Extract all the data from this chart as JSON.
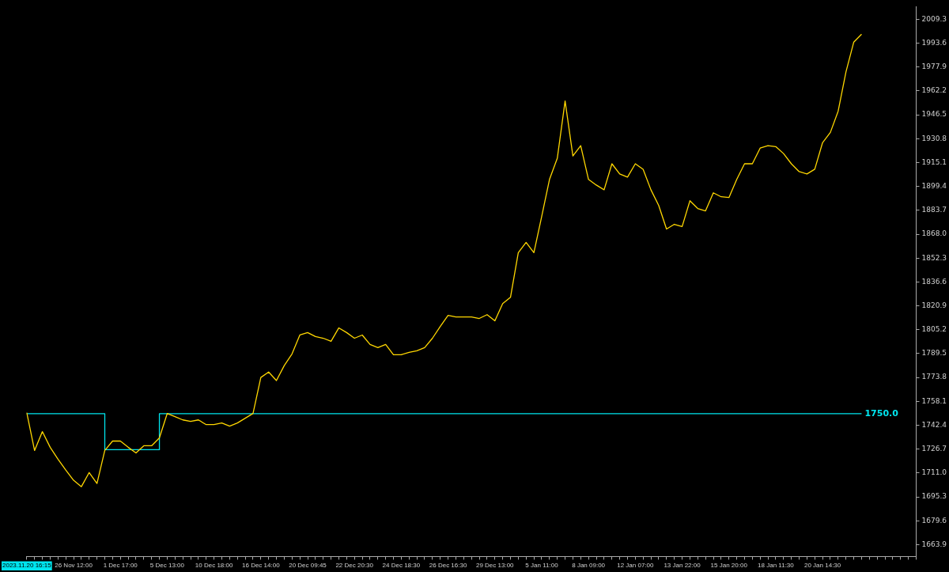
{
  "chart_data": {
    "type": "line",
    "categories": [
      "2023.11.20 16:15",
      null,
      null,
      null,
      null,
      null,
      "26 Nov 12:00",
      null,
      null,
      null,
      null,
      null,
      "1 Dec 17:00",
      null,
      null,
      null,
      null,
      null,
      "5 Dec 13:00",
      null,
      null,
      null,
      null,
      null,
      "10 Dec 18:00",
      null,
      null,
      null,
      null,
      null,
      "16 Dec 14:00",
      null,
      null,
      null,
      null,
      null,
      "20 Dec 09:45",
      null,
      null,
      null,
      null,
      null,
      "22 Dec 20:30",
      null,
      null,
      null,
      null,
      null,
      "24 Dec 18:30",
      null,
      null,
      null,
      null,
      null,
      "26 Dec 16:30",
      null,
      null,
      null,
      null,
      null,
      "29 Dec 13:00",
      null,
      null,
      null,
      null,
      null,
      "5 Jan 11:00",
      null,
      null,
      null,
      null,
      null,
      "8 Jan 09:00",
      null,
      null,
      null,
      null,
      null,
      "12 Jan 07:00",
      null,
      null,
      null,
      null,
      null,
      "13 Jan 22:00",
      null,
      null,
      null,
      null,
      null,
      "15 Jan 20:00",
      null,
      null,
      null,
      null,
      null,
      "18 Jan 11:30",
      null,
      null,
      null,
      null,
      null,
      "20 Jan 14:30",
      null,
      null,
      null,
      null,
      null,
      null,
      null,
      null,
      null,
      null,
      null,
      null
    ],
    "series": [
      {
        "color": "#ffd700",
        "values": [
          1750.6,
          1725.8,
          1738.2,
          1727.9,
          1720.1,
          1712.9,
          1706.2,
          1702.0,
          1711.3,
          1704.1,
          1725.8,
          1732.0,
          1732.0,
          1727.9,
          1724.2,
          1728.9,
          1728.9,
          1734.1,
          1750.1,
          1748.0,
          1745.9,
          1744.9,
          1745.9,
          1742.8,
          1742.8,
          1743.9,
          1741.8,
          1743.9,
          1747.0,
          1750.1,
          1773.8,
          1777.4,
          1771.8,
          1781.6,
          1789.3,
          1801.7,
          1803.3,
          1800.7,
          1799.6,
          1797.6,
          1806.4,
          1803.3,
          1799.6,
          1801.7,
          1795.5,
          1793.4,
          1795.5,
          1788.8,
          1788.8,
          1790.3,
          1791.4,
          1793.4,
          1799.6,
          1807.4,
          1814.6,
          1813.6,
          1813.6,
          1813.6,
          1812.6,
          1815.1,
          1811.0,
          1822.4,
          1826.5,
          1855.9,
          1862.6,
          1855.9,
          1879.7,
          1904.0,
          1917.9,
          1955.6,
          1919.4,
          1926.2,
          1904.0,
          1900.3,
          1897.2,
          1914.3,
          1907.6,
          1905.5,
          1914.3,
          1910.7,
          1897.2,
          1886.9,
          1871.4,
          1874.5,
          1873.0,
          1890.0,
          1884.9,
          1883.3,
          1895.2,
          1892.6,
          1892.1,
          1904.0,
          1914.3,
          1914.3,
          1924.6,
          1926.2,
          1925.6,
          1921.0,
          1914.3,
          1909.1,
          1907.6,
          1910.7,
          1928.2,
          1934.9,
          1948.9,
          1974.7,
          1994.3,
          1999.5,
          null,
          null,
          null,
          null,
          null,
          null,
          null
        ]
      },
      {
        "type": "step",
        "color": "#00e5ee",
        "values": [
          1750,
          1750,
          1750,
          1750,
          1750,
          1750,
          1750,
          1750,
          1750,
          1750,
          1750,
          1726.3,
          1726.3,
          1726.3,
          1726.3,
          1726.3,
          1726.3,
          1726.3,
          1750,
          1750,
          1750,
          1750,
          1750,
          1750,
          1750,
          1750,
          1750,
          1750,
          1750,
          1750,
          1750,
          1750,
          1750,
          1750,
          1750,
          1750,
          1750,
          1750,
          1750,
          1750,
          1750,
          1750,
          1750,
          1750,
          1750,
          1750,
          1750,
          1750,
          1750,
          1750,
          1750,
          1750,
          1750,
          1750,
          1750,
          1750,
          1750,
          1750,
          1750,
          1750,
          1750,
          1750,
          1750,
          1750,
          1750,
          1750,
          1750,
          1750,
          1750,
          1750,
          1750,
          1750,
          1750,
          1750,
          1750,
          1750,
          1750,
          1750,
          1750,
          1750,
          1750,
          1750,
          1750,
          1750,
          1750,
          1750,
          1750,
          1750,
          1750,
          1750,
          1750,
          1750,
          1750,
          1750,
          1750,
          1750,
          1750,
          1750,
          1750,
          1750,
          1750,
          1750,
          1750,
          1750,
          1750,
          1750,
          1750,
          1750,
          null,
          null,
          null,
          null,
          null,
          null,
          null
        ]
      }
    ],
    "ylim": [
      1656.1,
      2017.6
    ],
    "yticks": [
      1663.9,
      1679.6,
      1695.3,
      {
        "value": 1711,
        "label": "1711.0"
      },
      1726.7,
      1742.4,
      1758.1,
      1773.8,
      1789.5,
      1805.2,
      1820.9,
      1836.6,
      1852.3,
      {
        "value": 1868,
        "label": "1868.0"
      },
      1883.7,
      1899.4,
      1915.1,
      1930.8,
      1946.5,
      1962.2,
      1977.9,
      1993.6,
      2009.3
    ],
    "annotations": [
      "1750.0"
    ],
    "grid": false,
    "legend": false,
    "marker": "none"
  }
}
